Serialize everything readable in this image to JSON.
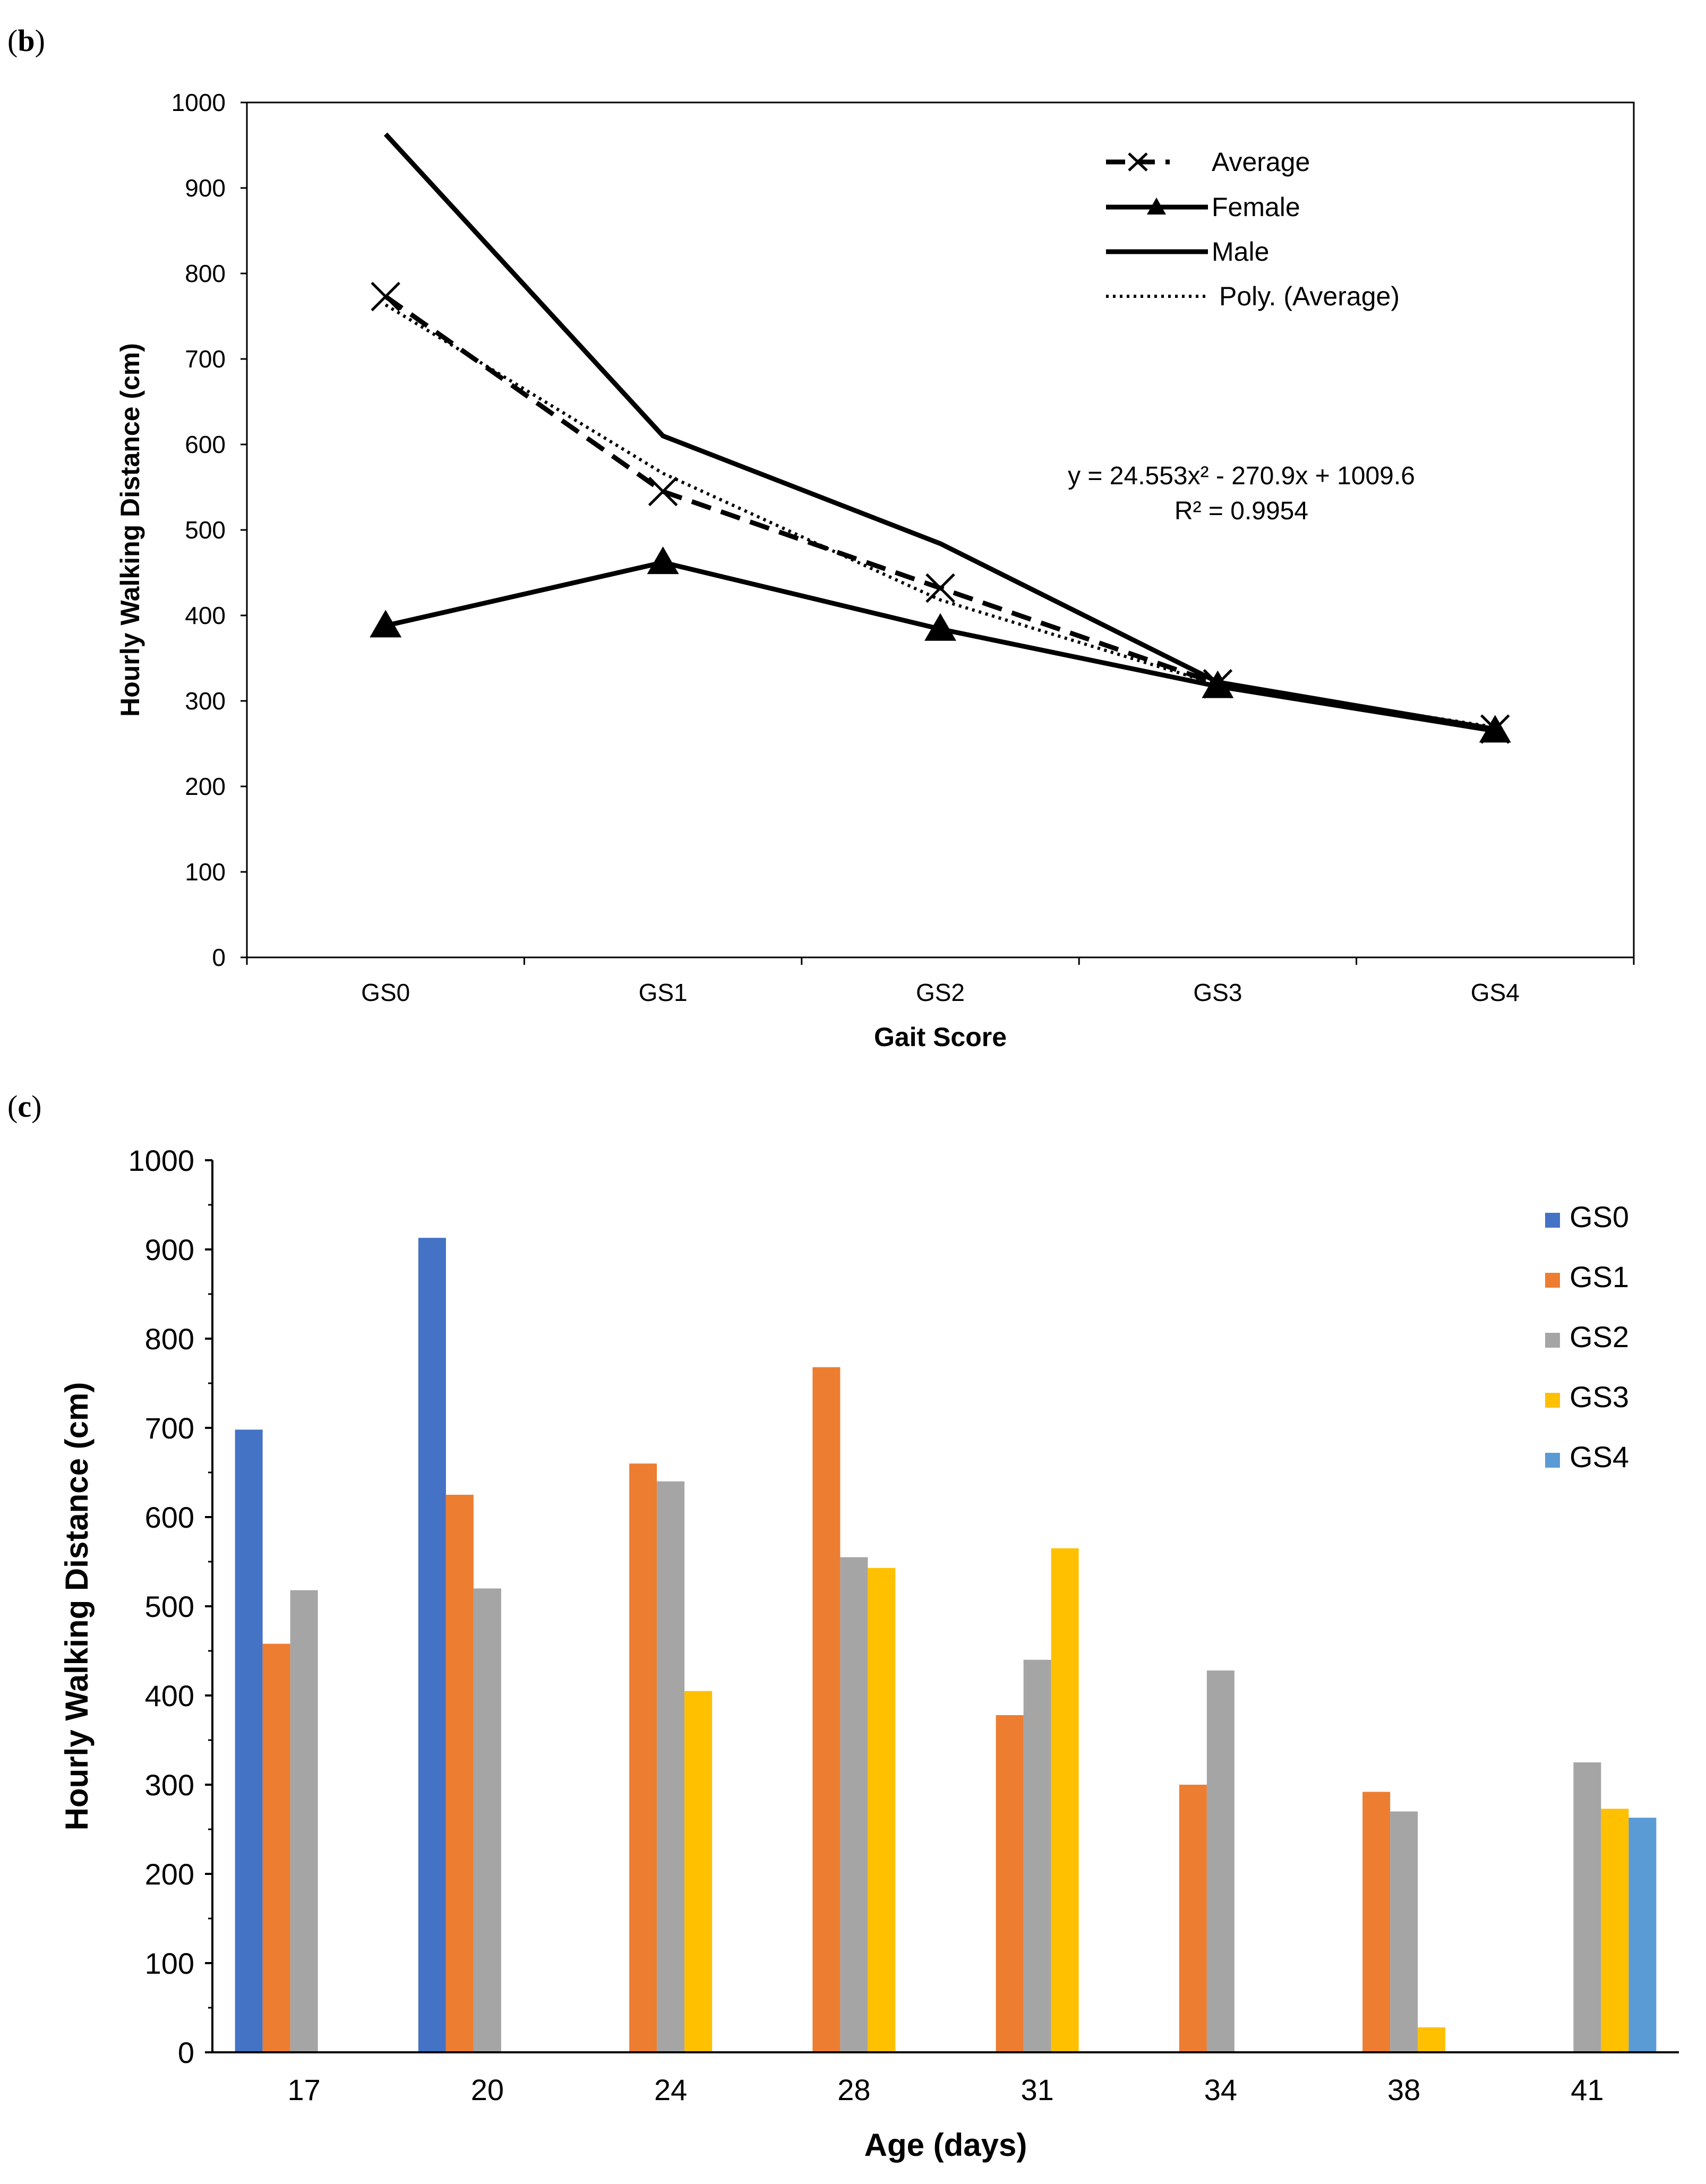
{
  "chart_data": [
    {
      "panel_label": "b",
      "type": "line",
      "categories": [
        "GS0",
        "GS1",
        "GS2",
        "GS3",
        "GS4"
      ],
      "series": [
        {
          "name": "Average",
          "values": [
            773,
            545,
            432,
            320,
            267
          ],
          "style": "dashed",
          "marker": "x"
        },
        {
          "name": "Female",
          "values": [
            388,
            462,
            384,
            317,
            265
          ],
          "style": "solid",
          "marker": "triangle"
        },
        {
          "name": "Male",
          "values": [
            963,
            610,
            484,
            322,
            267
          ],
          "style": "solid",
          "marker": "none"
        },
        {
          "name": "Poly. (Average)",
          "values": [
            763.3,
            566.2,
            418.1,
            319.1,
            269.3
          ],
          "style": "dotted",
          "marker": "none"
        }
      ],
      "trendline": {
        "equation": "y = 24.553x² - 270.9x + 1009.6",
        "r_squared": "R² = 0.9954",
        "coefficients": [
          24.553,
          -270.9,
          1009.6
        ]
      },
      "xlabel": "Gait Score",
      "ylabel": "Hourly Walking Distance (cm)",
      "yticks": [
        "0",
        "100",
        "200",
        "300",
        "400",
        "500",
        "600",
        "700",
        "800",
        "900",
        "1000"
      ],
      "ylim": [
        0,
        1000
      ],
      "legend_position": "top-right"
    },
    {
      "panel_label": "c",
      "type": "bar",
      "categories": [
        "17",
        "20",
        "24",
        "28",
        "31",
        "34",
        "38",
        "41"
      ],
      "series": [
        {
          "name": "GS0",
          "values": [
            698,
            913,
            null,
            null,
            null,
            null,
            null,
            null
          ]
        },
        {
          "name": "GS1",
          "values": [
            458,
            625,
            660,
            768,
            378,
            300,
            292,
            null
          ]
        },
        {
          "name": "GS2",
          "values": [
            518,
            520,
            640,
            555,
            440,
            428,
            270,
            325
          ]
        },
        {
          "name": "GS3",
          "values": [
            null,
            null,
            405,
            543,
            565,
            null,
            28,
            273
          ]
        },
        {
          "name": "GS4",
          "values": [
            null,
            null,
            null,
            null,
            null,
            null,
            null,
            263
          ]
        }
      ],
      "colors": [
        "#4472C4",
        "#ED7D31",
        "#A5A5A5",
        "#FFC000",
        "#5B9BD5"
      ],
      "xlabel": "Age (days)",
      "ylabel": "Hourly Walking Distance (cm)",
      "yticks": [
        "0",
        "100",
        "200",
        "300",
        "400",
        "500",
        "600",
        "700",
        "800",
        "900",
        "1000"
      ],
      "ylim": [
        0,
        1000
      ],
      "legend_position": "top-right"
    }
  ]
}
